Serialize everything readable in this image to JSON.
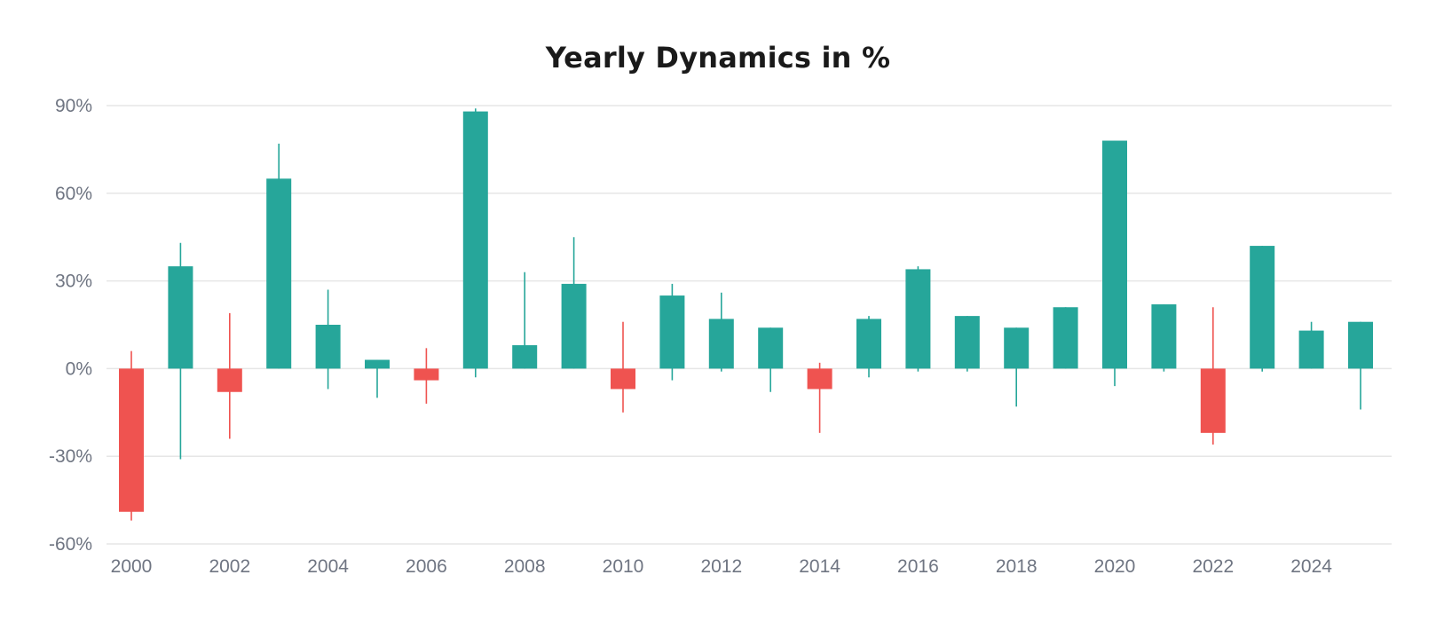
{
  "chart_data": {
    "type": "candlestick",
    "title": "Yearly Dynamics in %",
    "xlabel": "",
    "ylabel": "",
    "ylim": [
      -60,
      90
    ],
    "y_ticks": [
      90,
      60,
      30,
      0,
      -30,
      -60
    ],
    "y_tick_labels": [
      "90%",
      "60%",
      "30%",
      "0%",
      "-30%",
      "-60%"
    ],
    "x_tick_labels": [
      "2000",
      "2002",
      "2004",
      "2006",
      "2008",
      "2010",
      "2012",
      "2014",
      "2016",
      "2018",
      "2020",
      "2022",
      "2024"
    ],
    "grid": true,
    "colors": {
      "up": "#26a69a",
      "down": "#ef5350",
      "grid": "#e6e6e6",
      "axis_text": "#6f7582"
    },
    "series": [
      {
        "year": 2000,
        "open": 0,
        "close": -49,
        "high": 6,
        "low": -52
      },
      {
        "year": 2001,
        "open": 0,
        "close": 35,
        "high": 43,
        "low": -31
      },
      {
        "year": 2002,
        "open": 0,
        "close": -8,
        "high": 19,
        "low": -24
      },
      {
        "year": 2003,
        "open": 0,
        "close": 65,
        "high": 77,
        "low": 0
      },
      {
        "year": 2004,
        "open": 0,
        "close": 15,
        "high": 27,
        "low": -7
      },
      {
        "year": 2005,
        "open": 0,
        "close": 3,
        "high": 3,
        "low": -10
      },
      {
        "year": 2006,
        "open": 0,
        "close": -4,
        "high": 7,
        "low": -12
      },
      {
        "year": 2007,
        "open": 0,
        "close": 88,
        "high": 89,
        "low": -3
      },
      {
        "year": 2008,
        "open": 0,
        "close": 8,
        "high": 33,
        "low": 0
      },
      {
        "year": 2009,
        "open": 0,
        "close": 29,
        "high": 45,
        "low": 0
      },
      {
        "year": 2010,
        "open": 0,
        "close": -7,
        "high": 16,
        "low": -15
      },
      {
        "year": 2011,
        "open": 0,
        "close": 25,
        "high": 29,
        "low": -4
      },
      {
        "year": 2012,
        "open": 0,
        "close": 17,
        "high": 26,
        "low": -1
      },
      {
        "year": 2013,
        "open": 0,
        "close": 14,
        "high": 14,
        "low": -8
      },
      {
        "year": 2014,
        "open": 0,
        "close": -7,
        "high": 2,
        "low": -22
      },
      {
        "year": 2015,
        "open": 0,
        "close": 17,
        "high": 18,
        "low": -3
      },
      {
        "year": 2016,
        "open": 0,
        "close": 34,
        "high": 35,
        "low": -1
      },
      {
        "year": 2017,
        "open": 0,
        "close": 18,
        "high": 18,
        "low": -1
      },
      {
        "year": 2018,
        "open": 0,
        "close": 14,
        "high": 14,
        "low": -13
      },
      {
        "year": 2019,
        "open": 0,
        "close": 21,
        "high": 21,
        "low": 0
      },
      {
        "year": 2020,
        "open": 0,
        "close": 78,
        "high": 78,
        "low": -6
      },
      {
        "year": 2021,
        "open": 0,
        "close": 22,
        "high": 22,
        "low": -1
      },
      {
        "year": 2022,
        "open": 0,
        "close": -22,
        "high": 21,
        "low": -26
      },
      {
        "year": 2023,
        "open": 0,
        "close": 42,
        "high": 42,
        "low": -1
      },
      {
        "year": 2024,
        "open": 0,
        "close": 13,
        "high": 16,
        "low": 0
      },
      {
        "year": 2025,
        "open": 0,
        "close": 16,
        "high": 16,
        "low": -14
      }
    ]
  }
}
